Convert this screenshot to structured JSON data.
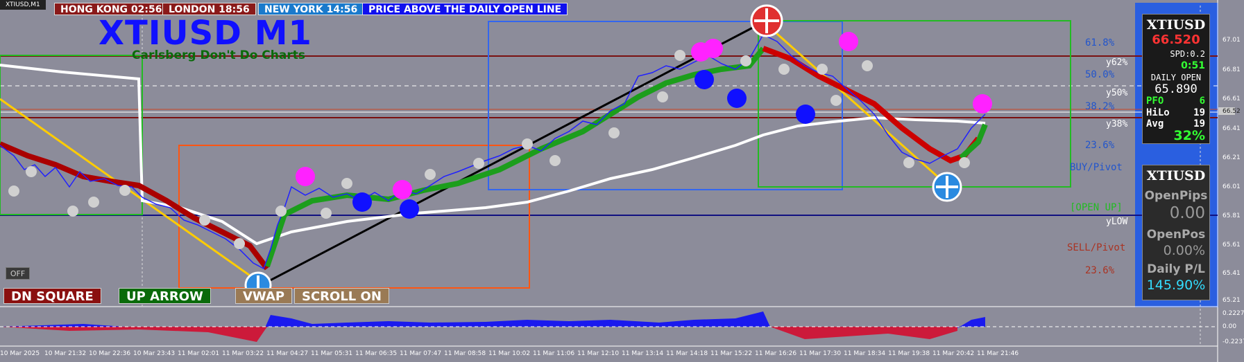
{
  "window": {
    "symbol_tab": "XTIUSD,M1"
  },
  "sessions": [
    {
      "label": "HONG KONG 02:56",
      "color": "#8a1a1a"
    },
    {
      "label": "LONDON  18:56",
      "color": "#8a1a1a"
    },
    {
      "label": "NEW YORK  14:56",
      "color": "#1a7acc"
    },
    {
      "label": "PRICE ABOVE THE DAILY OPEN LINE",
      "color": "#1010ee"
    }
  ],
  "title": {
    "main": "XTIUSD M1",
    "subtitle": "Carlsberg Don't Do Charts"
  },
  "buttons": {
    "off": "OFF",
    "dn_square": "DN SQUARE",
    "up_arrow": "UP ARROW",
    "vwap": "VWAP",
    "scroll": "SCROLL ON"
  },
  "fib_labels": {
    "f618": "61.8%",
    "f500": "50.0%",
    "f382": "38.2%",
    "f236a": "23.6%",
    "buy_pivot": "BUY/Pivot",
    "open_up": "[OPEN UP]",
    "sell_pivot": "SELL/Pivot",
    "f236b": "23.6%"
  },
  "y_labels": {
    "y62": "y62%",
    "y50": "y50%",
    "y38": "y38%",
    "ylow": "yLOW"
  },
  "price_axis": [
    "67.01",
    "66.81",
    "66.61",
    "66.52",
    "66.41",
    "66.21",
    "66.01",
    "65.81",
    "65.61",
    "65.41",
    "65.21"
  ],
  "osc_axis": [
    "0.2227",
    "0.00",
    "-0.2237"
  ],
  "time_axis": [
    "10 Mar 2025",
    "10 Mar 21:32",
    "10 Mar 22:36",
    "10 Mar 23:43",
    "11 Mar 02:01",
    "11 Mar 03:22",
    "11 Mar 04:27",
    "11 Mar 05:31",
    "11 Mar 06:35",
    "11 Mar 07:47",
    "11 Mar 08:58",
    "11 Mar 10:02",
    "11 Mar 11:06",
    "11 Mar 12:10",
    "11 Mar 13:14",
    "11 Mar 14:18",
    "11 Mar 15:22",
    "11 Mar 16:26",
    "11 Mar 17:30",
    "11 Mar 18:34",
    "11 Mar 19:38",
    "11 Mar 20:42",
    "11 Mar 21:46"
  ],
  "panel_top": {
    "symbol": "XTIUSD",
    "price": "66.520",
    "spread": "SPD:0.2",
    "timer": "0:51",
    "daily_open_label": "DAILY OPEN",
    "daily_open": "65.890",
    "pfo_label": "PFO",
    "pfo": "6",
    "hilo_label": "HiLo",
    "hilo": "19",
    "avg_label": "Avg",
    "avg": "19",
    "pct": "32%"
  },
  "panel_bottom": {
    "symbol": "XTIUSD",
    "open_pips_label": "OpenPips",
    "open_pips": "0.00",
    "open_pos_label": "OpenPos",
    "open_pos": "0.00%",
    "daily_pl_label": "Daily P/L",
    "daily_pl": "145.90%"
  },
  "colors": {
    "chart_bg": "#8c8c9a",
    "bull": "#00aa00",
    "bear": "#cc0000",
    "accent_blue": "#1010ff",
    "magenta": "#ff22ff"
  }
}
